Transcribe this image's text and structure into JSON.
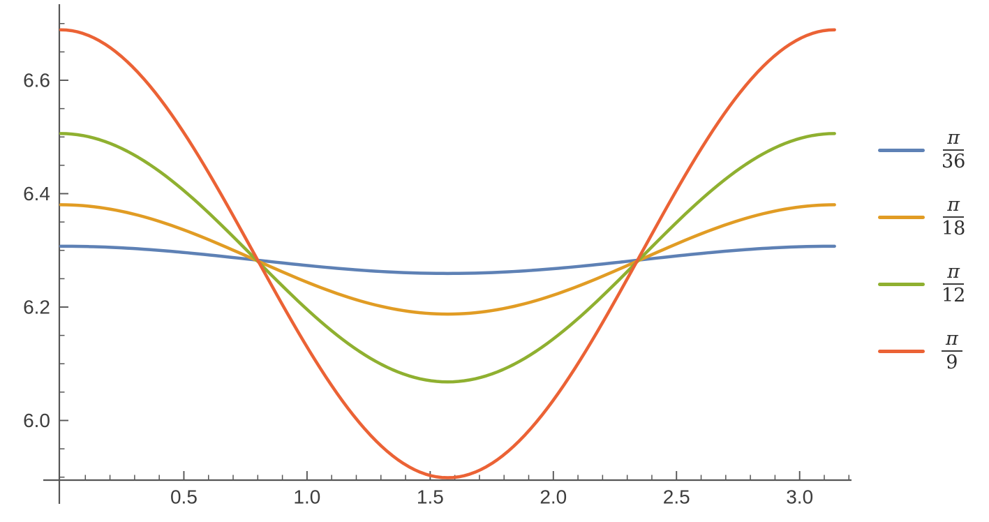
{
  "page": {
    "background_color": "#ffffff"
  },
  "chart_data": {
    "type": "line",
    "title": "",
    "xlabel": "",
    "ylabel": "",
    "grid": "off",
    "axis_color": "#565656",
    "tick_label_color": "#3d3d3d",
    "x_axis": {
      "min": 0,
      "max": 3.2,
      "major_ticks": [
        0.5,
        1.0,
        1.5,
        2.0,
        2.5,
        3.0
      ],
      "major_tick_labels": [
        "0.5",
        "1.0",
        "1.5",
        "2.0",
        "2.5",
        "3.0"
      ],
      "minor_tick_step": 0.1,
      "minor_tick_min": 0.1,
      "minor_tick_max": 3.2
    },
    "y_axis": {
      "min": 5.895,
      "max": 6.735,
      "major_ticks": [
        6.0,
        6.2,
        6.4,
        6.6
      ],
      "major_tick_labels": [
        "6.0",
        "6.2",
        "6.4",
        "6.6"
      ],
      "minor_tick_step": 0.05,
      "minor_tick_min": 5.9,
      "minor_tick_max": 6.7
    },
    "model": "y(x) = mean + amplitude * cos(2x), plotted for x in [0, pi]",
    "series": [
      {
        "name": "pi/36",
        "legend_numerator": "π",
        "legend_denominator": "36",
        "color": "#5E81B5",
        "mean": 6.2833,
        "amplitude": 0.024,
        "x_start": 0,
        "x_end": 3.14159,
        "sample_x": [
          0,
          0.3927,
          0.7854,
          1.1781,
          1.5708,
          1.9635,
          2.3562,
          2.7489,
          3.1416
        ],
        "sample_y": [
          6.307,
          6.3,
          6.283,
          6.266,
          6.259,
          6.266,
          6.283,
          6.3,
          6.307
        ]
      },
      {
        "name": "pi/18",
        "legend_numerator": "π",
        "legend_denominator": "18",
        "color": "#E19C24",
        "mean": 6.284,
        "amplitude": 0.0964,
        "x_start": 0,
        "x_end": 3.14159,
        "sample_x": [
          0,
          0.3927,
          0.7854,
          1.1781,
          1.5708,
          1.9635,
          2.3562,
          2.7489,
          3.1416
        ],
        "sample_y": [
          6.38,
          6.352,
          6.284,
          6.216,
          6.188,
          6.216,
          6.284,
          6.352,
          6.38
        ]
      },
      {
        "name": "pi/12",
        "legend_numerator": "π",
        "legend_denominator": "12",
        "color": "#8FB030",
        "mean": 6.287,
        "amplitude": 0.219,
        "x_start": 0,
        "x_end": 3.14159,
        "sample_x": [
          0,
          0.3927,
          0.7854,
          1.1781,
          1.5708,
          1.9635,
          2.3562,
          2.7489,
          3.1416
        ],
        "sample_y": [
          6.506,
          6.442,
          6.287,
          6.132,
          6.068,
          6.132,
          6.287,
          6.442,
          6.506
        ]
      },
      {
        "name": "pi/9",
        "legend_numerator": "π",
        "legend_denominator": "9",
        "color": "#EB6235",
        "mean": 6.294,
        "amplitude": 0.395,
        "x_start": 0,
        "x_end": 3.14159,
        "sample_x": [
          0,
          0.3927,
          0.7854,
          1.1781,
          1.5708,
          1.9635,
          2.3562,
          2.7489,
          3.1416
        ],
        "sample_y": [
          6.689,
          6.573,
          6.294,
          6.015,
          5.899,
          6.015,
          6.294,
          6.573,
          6.689
        ]
      }
    ],
    "legend": {
      "position": "right-center"
    }
  }
}
